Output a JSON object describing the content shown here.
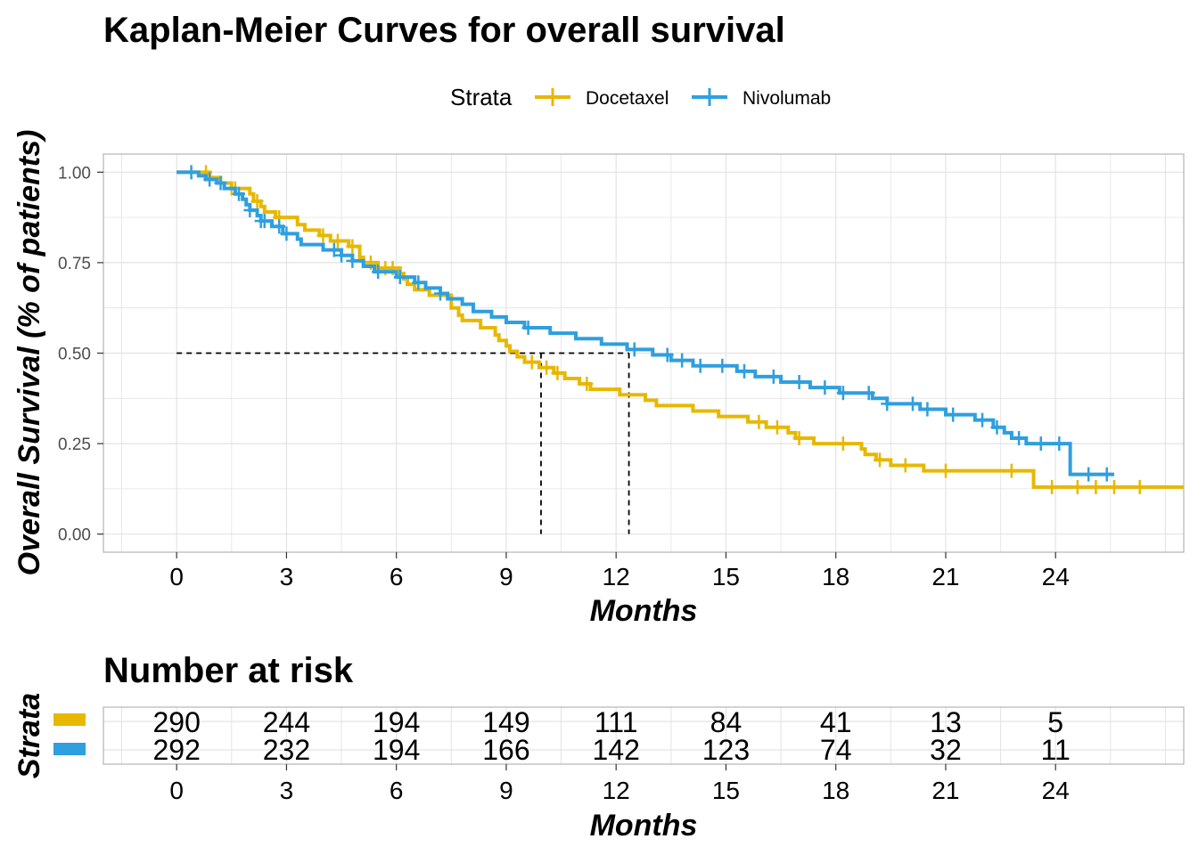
{
  "chart_data": {
    "type": "line",
    "title": "Kaplan-Meier Curves for overall survival",
    "xlabel": "Months",
    "ylabel": "Overall Survival (% of patients)",
    "xlim": [
      -2,
      27.5
    ],
    "ylim": [
      -0.05,
      1.05
    ],
    "x_ticks": [
      "0",
      "3",
      "6",
      "9",
      "12",
      "15",
      "18",
      "21",
      "24"
    ],
    "y_ticks": [
      "0.00",
      "0.25",
      "0.50",
      "0.75",
      "1.00"
    ],
    "grid": true,
    "legend": {
      "title": "Strata",
      "position": "top"
    },
    "median_lines": [
      {
        "x": 9.95,
        "y": 0.5
      },
      {
        "x": 12.35,
        "y": 0.5
      }
    ],
    "series": [
      {
        "name": "Docetaxel",
        "color": "#E7B800",
        "steps": [
          [
            0,
            1.0
          ],
          [
            0.9,
            0.985
          ],
          [
            1.2,
            0.97
          ],
          [
            1.5,
            0.955
          ],
          [
            2.0,
            0.94
          ],
          [
            2.1,
            0.92
          ],
          [
            2.3,
            0.905
          ],
          [
            2.4,
            0.89
          ],
          [
            2.7,
            0.875
          ],
          [
            3.3,
            0.855
          ],
          [
            3.5,
            0.84
          ],
          [
            3.9,
            0.825
          ],
          [
            4.2,
            0.81
          ],
          [
            4.7,
            0.795
          ],
          [
            5.0,
            0.78
          ],
          [
            5.0,
            0.765
          ],
          [
            5.1,
            0.75
          ],
          [
            5.5,
            0.735
          ],
          [
            6.1,
            0.72
          ],
          [
            6.2,
            0.705
          ],
          [
            6.3,
            0.69
          ],
          [
            6.5,
            0.675
          ],
          [
            6.9,
            0.66
          ],
          [
            7.5,
            0.645
          ],
          [
            7.5,
            0.625
          ],
          [
            7.7,
            0.605
          ],
          [
            7.8,
            0.59
          ],
          [
            8.3,
            0.57
          ],
          [
            8.7,
            0.55
          ],
          [
            8.8,
            0.535
          ],
          [
            9.0,
            0.52
          ],
          [
            9.1,
            0.505
          ],
          [
            9.3,
            0.49
          ],
          [
            9.5,
            0.475
          ],
          [
            9.9,
            0.46
          ],
          [
            10.3,
            0.445
          ],
          [
            10.6,
            0.43
          ],
          [
            11.0,
            0.415
          ],
          [
            11.3,
            0.4
          ],
          [
            12.1,
            0.385
          ],
          [
            12.8,
            0.37
          ],
          [
            13.1,
            0.355
          ],
          [
            14.1,
            0.34
          ],
          [
            14.8,
            0.325
          ],
          [
            15.6,
            0.31
          ],
          [
            16.1,
            0.295
          ],
          [
            16.7,
            0.28
          ],
          [
            16.9,
            0.265
          ],
          [
            17.4,
            0.25
          ],
          [
            18.7,
            0.235
          ],
          [
            18.8,
            0.22
          ],
          [
            19.1,
            0.205
          ],
          [
            19.5,
            0.19
          ],
          [
            20.4,
            0.175
          ],
          [
            23.4,
            0.13
          ]
        ],
        "x_end": 27.5,
        "censor_x": [
          0.8,
          1.5,
          1.6,
          2.2,
          2.8,
          4.0,
          4.4,
          4.8,
          5.3,
          5.7,
          5.9,
          9.7,
          10.1,
          10.4,
          11.2,
          15.9,
          16.4,
          17.0,
          18.2,
          19.2,
          19.9,
          21.0,
          22.8,
          23.9,
          24.6,
          25.1,
          25.6,
          26.3
        ]
      },
      {
        "name": "Nivolumab",
        "color": "#2E9FDF",
        "steps": [
          [
            0,
            1.0
          ],
          [
            0.6,
            0.99
          ],
          [
            0.8,
            0.98
          ],
          [
            1.1,
            0.97
          ],
          [
            1.3,
            0.955
          ],
          [
            1.6,
            0.94
          ],
          [
            1.8,
            0.925
          ],
          [
            1.9,
            0.91
          ],
          [
            2.0,
            0.895
          ],
          [
            2.2,
            0.88
          ],
          [
            2.3,
            0.865
          ],
          [
            2.6,
            0.85
          ],
          [
            2.9,
            0.83
          ],
          [
            3.3,
            0.815
          ],
          [
            3.4,
            0.8
          ],
          [
            4.0,
            0.785
          ],
          [
            4.5,
            0.77
          ],
          [
            4.8,
            0.755
          ],
          [
            5.1,
            0.74
          ],
          [
            5.4,
            0.725
          ],
          [
            6.0,
            0.71
          ],
          [
            6.5,
            0.695
          ],
          [
            6.8,
            0.68
          ],
          [
            7.2,
            0.665
          ],
          [
            7.4,
            0.65
          ],
          [
            7.8,
            0.635
          ],
          [
            8.1,
            0.615
          ],
          [
            8.6,
            0.6
          ],
          [
            9.0,
            0.585
          ],
          [
            9.5,
            0.57
          ],
          [
            10.2,
            0.555
          ],
          [
            10.9,
            0.54
          ],
          [
            11.6,
            0.525
          ],
          [
            12.3,
            0.51
          ],
          [
            13.0,
            0.495
          ],
          [
            13.5,
            0.48
          ],
          [
            14.1,
            0.465
          ],
          [
            15.3,
            0.45
          ],
          [
            15.8,
            0.435
          ],
          [
            16.5,
            0.42
          ],
          [
            17.3,
            0.405
          ],
          [
            18.1,
            0.39
          ],
          [
            19.0,
            0.375
          ],
          [
            19.4,
            0.36
          ],
          [
            20.3,
            0.345
          ],
          [
            21.0,
            0.33
          ],
          [
            21.8,
            0.315
          ],
          [
            22.3,
            0.295
          ],
          [
            22.6,
            0.28
          ],
          [
            22.8,
            0.265
          ],
          [
            23.2,
            0.25
          ],
          [
            24.4,
            0.165
          ]
        ],
        "x_end": 25.6,
        "censor_x": [
          0.4,
          0.9,
          1.2,
          1.7,
          2.0,
          2.3,
          2.4,
          2.8,
          3.0,
          4.3,
          4.5,
          4.8,
          5.5,
          6.1,
          6.6,
          7.2,
          9.6,
          12.5,
          13.4,
          13.8,
          14.3,
          14.9,
          15.5,
          16.3,
          17.0,
          17.7,
          18.2,
          18.9,
          19.4,
          20.1,
          20.5,
          21.2,
          22.0,
          22.4,
          23.0,
          23.6,
          24.1,
          24.9,
          25.4
        ]
      }
    ],
    "risk_table": {
      "title": "Number at risk",
      "ylabel": "Strata",
      "xlabel": "Months",
      "times": [
        "0",
        "3",
        "6",
        "9",
        "12",
        "15",
        "18",
        "21",
        "24"
      ],
      "rows": [
        {
          "color": "#E7B800",
          "counts": [
            "290",
            "244",
            "194",
            "149",
            "111",
            "84",
            "41",
            "13",
            "5"
          ]
        },
        {
          "color": "#2E9FDF",
          "counts": [
            "292",
            "232",
            "194",
            "166",
            "142",
            "123",
            "74",
            "32",
            "11"
          ]
        }
      ]
    }
  }
}
